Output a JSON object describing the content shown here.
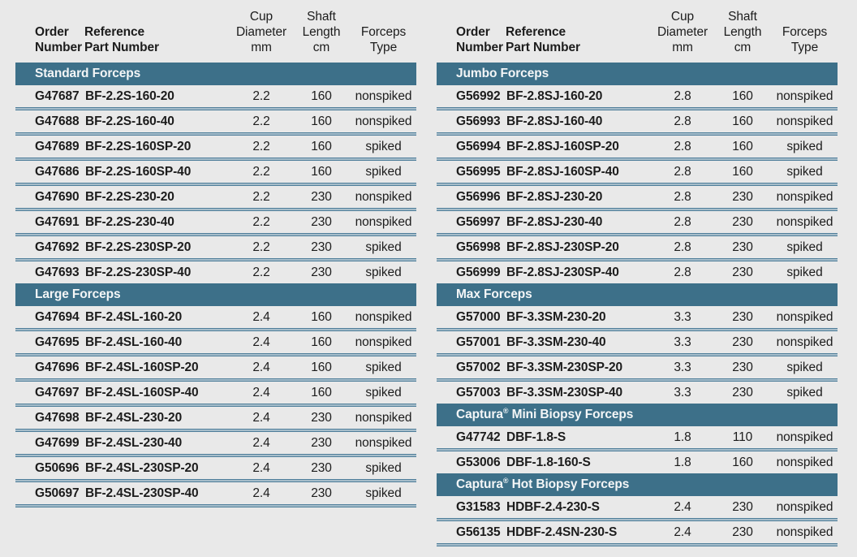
{
  "colors": {
    "background": "#e9e9e9",
    "section_bar": "#3d7089",
    "section_bar_text": "#f4f6f7",
    "divider_dark": "#4f7e9a",
    "divider_light": "#a6bdca",
    "body_text": "#1c1c1c"
  },
  "columns": {
    "order": "Order\nNumber",
    "reference": "Reference\nPart Number",
    "cup": "Cup\nDiameter\nmm",
    "shaft": "Shaft\nLength\ncm",
    "type": "Forceps\nType"
  },
  "left_table": {
    "sections": [
      {
        "title": "Standard Forceps",
        "rows": [
          {
            "order": "G47687",
            "part": "BF-2.2S-160-20",
            "cup": "2.2",
            "shaft": "160",
            "type": "nonspiked"
          },
          {
            "order": "G47688",
            "part": "BF-2.2S-160-40",
            "cup": "2.2",
            "shaft": "160",
            "type": "nonspiked"
          },
          {
            "order": "G47689",
            "part": "BF-2.2S-160SP-20",
            "cup": "2.2",
            "shaft": "160",
            "type": "spiked"
          },
          {
            "order": "G47686",
            "part": "BF-2.2S-160SP-40",
            "cup": "2.2",
            "shaft": "160",
            "type": "spiked"
          },
          {
            "order": "G47690",
            "part": "BF-2.2S-230-20",
            "cup": "2.2",
            "shaft": "230",
            "type": "nonspiked"
          },
          {
            "order": "G47691",
            "part": "BF-2.2S-230-40",
            "cup": "2.2",
            "shaft": "230",
            "type": "nonspiked"
          },
          {
            "order": "G47692",
            "part": "BF-2.2S-230SP-20",
            "cup": "2.2",
            "shaft": "230",
            "type": "spiked"
          },
          {
            "order": "G47693",
            "part": "BF-2.2S-230SP-40",
            "cup": "2.2",
            "shaft": "230",
            "type": "spiked"
          }
        ]
      },
      {
        "title": "Large Forceps",
        "rows": [
          {
            "order": "G47694",
            "part": "BF-2.4SL-160-20",
            "cup": "2.4",
            "shaft": "160",
            "type": "nonspiked"
          },
          {
            "order": "G47695",
            "part": "BF-2.4SL-160-40",
            "cup": "2.4",
            "shaft": "160",
            "type": "nonspiked"
          },
          {
            "order": "G47696",
            "part": "BF-2.4SL-160SP-20",
            "cup": "2.4",
            "shaft": "160",
            "type": "spiked"
          },
          {
            "order": "G47697",
            "part": "BF-2.4SL-160SP-40",
            "cup": "2.4",
            "shaft": "160",
            "type": "spiked"
          },
          {
            "order": "G47698",
            "part": "BF-2.4SL-230-20",
            "cup": "2.4",
            "shaft": "230",
            "type": "nonspiked"
          },
          {
            "order": "G47699",
            "part": "BF-2.4SL-230-40",
            "cup": "2.4",
            "shaft": "230",
            "type": "nonspiked"
          },
          {
            "order": "G50696",
            "part": "BF-2.4SL-230SP-20",
            "cup": "2.4",
            "shaft": "230",
            "type": "spiked"
          },
          {
            "order": "G50697",
            "part": "BF-2.4SL-230SP-40",
            "cup": "2.4",
            "shaft": "230",
            "type": "spiked"
          }
        ]
      }
    ]
  },
  "right_table": {
    "sections": [
      {
        "title": "Jumbo Forceps",
        "rows": [
          {
            "order": "G56992",
            "part": "BF-2.8SJ-160-20",
            "cup": "2.8",
            "shaft": "160",
            "type": "nonspiked"
          },
          {
            "order": "G56993",
            "part": "BF-2.8SJ-160-40",
            "cup": "2.8",
            "shaft": "160",
            "type": "nonspiked"
          },
          {
            "order": "G56994",
            "part": "BF-2.8SJ-160SP-20",
            "cup": "2.8",
            "shaft": "160",
            "type": "spiked"
          },
          {
            "order": "G56995",
            "part": "BF-2.8SJ-160SP-40",
            "cup": "2.8",
            "shaft": "160",
            "type": "spiked"
          },
          {
            "order": "G56996",
            "part": "BF-2.8SJ-230-20",
            "cup": "2.8",
            "shaft": "230",
            "type": "nonspiked"
          },
          {
            "order": "G56997",
            "part": "BF-2.8SJ-230-40",
            "cup": "2.8",
            "shaft": "230",
            "type": "nonspiked"
          },
          {
            "order": "G56998",
            "part": "BF-2.8SJ-230SP-20",
            "cup": "2.8",
            "shaft": "230",
            "type": "spiked"
          },
          {
            "order": "G56999",
            "part": "BF-2.8SJ-230SP-40",
            "cup": "2.8",
            "shaft": "230",
            "type": "spiked"
          }
        ]
      },
      {
        "title": "Max Forceps",
        "rows": [
          {
            "order": "G57000",
            "part": "BF-3.3SM-230-20",
            "cup": "3.3",
            "shaft": "230",
            "type": "nonspiked"
          },
          {
            "order": "G57001",
            "part": "BF-3.3SM-230-40",
            "cup": "3.3",
            "shaft": "230",
            "type": "nonspiked"
          },
          {
            "order": "G57002",
            "part": "BF-3.3SM-230SP-20",
            "cup": "3.3",
            "shaft": "230",
            "type": "spiked"
          },
          {
            "order": "G57003",
            "part": "BF-3.3SM-230SP-40",
            "cup": "3.3",
            "shaft": "230",
            "type": "spiked"
          }
        ]
      },
      {
        "title": "Captura® Mini Biopsy Forceps",
        "rows": [
          {
            "order": "G47742",
            "part": "DBF-1.8-S",
            "cup": "1.8",
            "shaft": "110",
            "type": "nonspiked"
          },
          {
            "order": "G53006",
            "part": "DBF-1.8-160-S",
            "cup": "1.8",
            "shaft": "160",
            "type": "nonspiked"
          }
        ]
      },
      {
        "title": "Captura® Hot Biopsy Forceps",
        "rows": [
          {
            "order": "G31583",
            "part": "HDBF-2.4-230-S",
            "cup": "2.4",
            "shaft": "230",
            "type": "nonspiked"
          },
          {
            "order": "G56135",
            "part": "HDBF-2.4SN-230-S",
            "cup": "2.4",
            "shaft": "230",
            "type": "nonspiked"
          }
        ]
      }
    ]
  }
}
